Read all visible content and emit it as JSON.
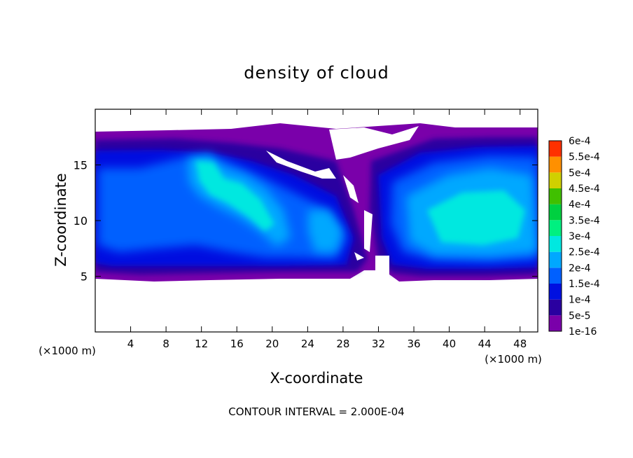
{
  "chart_data": {
    "type": "heatmap",
    "title": "density of cloud",
    "xlabel": "X-coordinate",
    "ylabel": "Z-coordinate",
    "x_unit": "(×1000 m)",
    "x_unit_right": "(×1000 m)",
    "xlim": [
      0,
      50
    ],
    "ylim": [
      0,
      20
    ],
    "x_ticks": [
      4,
      8,
      12,
      16,
      20,
      24,
      28,
      32,
      36,
      40,
      44,
      48
    ],
    "y_ticks": [
      5,
      10,
      15
    ],
    "footer": "CONTOUR INTERVAL = 2.000E-04",
    "colorbar": {
      "labels": [
        "6e-4",
        "5.5e-4",
        "5e-4",
        "4.5e-4",
        "4e-4",
        "3.5e-4",
        "3e-4",
        "2.5e-4",
        "2e-4",
        "1.5e-4",
        "1e-4",
        "5e-5",
        "1e-16"
      ],
      "colors": [
        "#7a00aa",
        "#2a00a0",
        "#0010e0",
        "#0060ff",
        "#00a8ff",
        "#00e8e0",
        "#00f080",
        "#00d040",
        "#40c000",
        "#d0d000",
        "#ff9000",
        "#ff3000",
        "#ff8080"
      ]
    }
  }
}
